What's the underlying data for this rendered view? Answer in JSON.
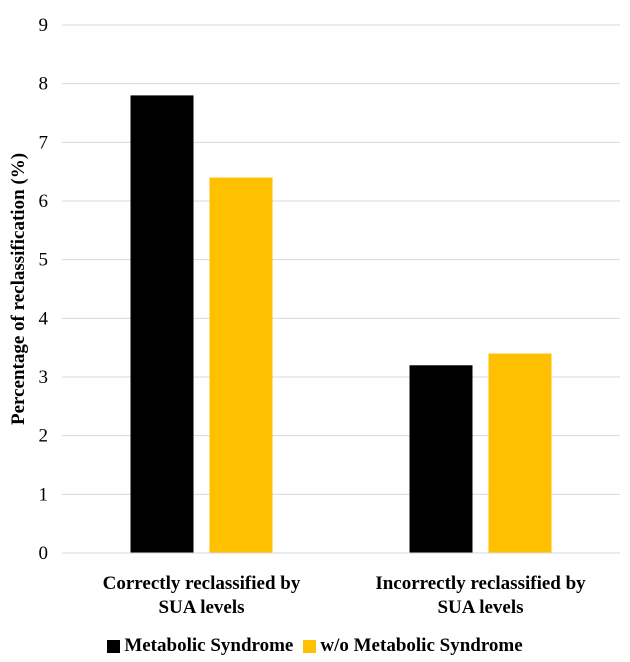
{
  "chart_data": {
    "type": "bar",
    "ylabel": "Percentage of reclassification (%)",
    "ylim": [
      0,
      9
    ],
    "yticks": [
      0,
      1,
      2,
      3,
      4,
      5,
      6,
      7,
      8,
      9
    ],
    "grid": true,
    "legend_position": "bottom",
    "categories": [
      [
        "Correctly reclassified by",
        "SUA levels"
      ],
      [
        "Incorrectly reclassified by",
        "SUA levels"
      ]
    ],
    "series": [
      {
        "name": "Metabolic Syndrome",
        "color": "#000000",
        "values": [
          7.8,
          3.2
        ]
      },
      {
        "name": "w/o Metabolic Syndrome",
        "color": "#FFC000",
        "values": [
          6.4,
          3.4
        ]
      }
    ]
  }
}
